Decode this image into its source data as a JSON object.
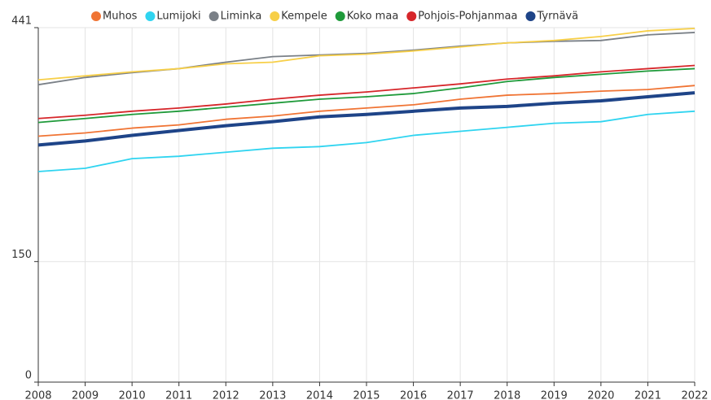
{
  "chart_data": {
    "type": "line",
    "x": [
      2008,
      2009,
      2010,
      2011,
      2012,
      2013,
      2014,
      2015,
      2016,
      2017,
      2018,
      2019,
      2020,
      2021,
      2022
    ],
    "xlim": [
      2008,
      2022
    ],
    "xticks": [
      2008,
      2009,
      2010,
      2011,
      2012,
      2013,
      2014,
      2015,
      2016,
      2017,
      2018,
      2019,
      2020,
      2021,
      2022
    ],
    "ylim": [
      0,
      441
    ],
    "yticks": [
      0,
      150,
      441
    ],
    "grid": true,
    "legend": "top",
    "series": [
      {
        "name": "Muhos",
        "color": "#f07434",
        "values": [
          306,
          310,
          316,
          320,
          327,
          331,
          337,
          341,
          345,
          352,
          357,
          359,
          362,
          364,
          369
        ]
      },
      {
        "name": "Lumijoki",
        "color": "#2fd4f0",
        "values": [
          262,
          266,
          278,
          281,
          286,
          291,
          293,
          298,
          307,
          312,
          317,
          322,
          324,
          333,
          337
        ]
      },
      {
        "name": "Liminka",
        "color": "#7a8087",
        "values": [
          370,
          379,
          385,
          390,
          398,
          405,
          407,
          409,
          413,
          418,
          422,
          424,
          425,
          432,
          435
        ]
      },
      {
        "name": "Kempele",
        "color": "#f7cf48",
        "values": [
          376,
          381,
          386,
          390,
          396,
          398,
          406,
          408,
          412,
          417,
          422,
          425,
          430,
          437,
          440
        ]
      },
      {
        "name": "Koko maa",
        "color": "#1f9a3a",
        "values": [
          323,
          328,
          333,
          337,
          342,
          347,
          352,
          355,
          359,
          366,
          374,
          379,
          383,
          387,
          390
        ]
      },
      {
        "name": "Pohjois-Pohjanmaa",
        "color": "#d6262a",
        "values": [
          328,
          332,
          337,
          341,
          346,
          352,
          357,
          361,
          366,
          371,
          377,
          381,
          386,
          390,
          394
        ]
      },
      {
        "name": "Tyrnävä",
        "color": "#1e4488",
        "values": [
          295,
          300,
          307,
          313,
          319,
          324,
          330,
          333,
          337,
          341,
          343,
          347,
          350,
          355,
          360
        ]
      }
    ]
  }
}
